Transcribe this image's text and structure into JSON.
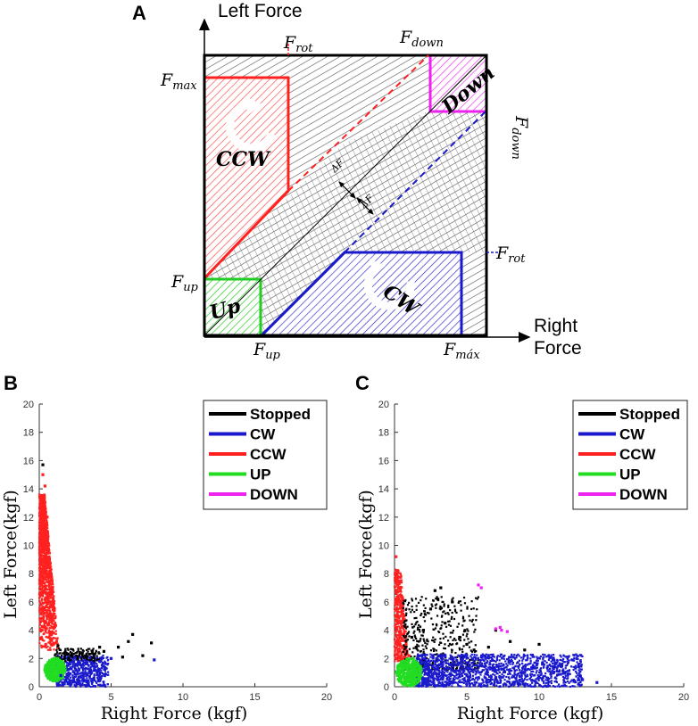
{
  "panel_a": {
    "letter": "A",
    "y_axis_title": "Left Force",
    "x_axis_title_line1": "Right",
    "x_axis_title_line2": "Force",
    "thresholds": {
      "f_rot_top": {
        "main": "F",
        "sub": "rot"
      },
      "f_down_top": {
        "main": "F",
        "sub": "down"
      },
      "f_max_left": {
        "main": "F",
        "sub": "max"
      },
      "f_up_left": {
        "main": "F",
        "sub": "up"
      },
      "f_up_bottom": {
        "main": "F",
        "sub": "up"
      },
      "f_max_bottom": {
        "main": "F",
        "sub": "máx"
      },
      "f_rot_right": {
        "main": "F",
        "sub": "rot"
      },
      "f_down_right": {
        "main": "F",
        "sub": "down"
      }
    },
    "regions": {
      "ccw": "CCW",
      "cw": "CW",
      "up": "Up",
      "down": "Down"
    },
    "delta_label": "ΔF",
    "colors": {
      "ccw": "#ff2020",
      "cw": "#1a1acc",
      "up": "#22cc22",
      "down": "#ee22ee",
      "stopped": "#000000"
    }
  },
  "chart_data": [
    {
      "panel": "B",
      "type": "scatter",
      "xlabel": "Right Force (kgf)",
      "ylabel": "Left Force(kgf)",
      "xlim": [
        0,
        20
      ],
      "ylim": [
        0,
        20
      ],
      "xticks": [
        "0",
        "5",
        "10",
        "15",
        "20"
      ],
      "yticks": [
        "0",
        "2",
        "4",
        "6",
        "8",
        "10",
        "12",
        "14",
        "16",
        "18",
        "20"
      ],
      "legend": [
        {
          "label": "Stopped",
          "color": "#000000"
        },
        {
          "label": "CW",
          "color": "#1a1acc"
        },
        {
          "label": "CCW",
          "color": "#ff2020"
        },
        {
          "label": "UP",
          "color": "#22dd22"
        },
        {
          "label": "DOWN",
          "color": "#ee22ee"
        }
      ],
      "series": [
        {
          "name": "CCW",
          "color": "#ff2020",
          "points": [
            [
              0.1,
              6.5
            ],
            [
              0.2,
              8.2
            ],
            [
              0.3,
              10.5
            ],
            [
              0.15,
              12.8
            ],
            [
              0.4,
              14.2
            ],
            [
              0.25,
              15.0
            ],
            [
              0.5,
              11.0
            ],
            [
              0.6,
              9.0
            ],
            [
              0.7,
              7.5
            ],
            [
              0.35,
              5.2
            ],
            [
              0.8,
              6.0
            ],
            [
              0.9,
              4.8
            ],
            [
              1.0,
              3.8
            ],
            [
              1.2,
              3.2
            ],
            [
              0.45,
              3.0
            ],
            [
              0.3,
              13.5
            ],
            [
              0.55,
              12.0
            ],
            [
              0.2,
              4.0
            ]
          ]
        },
        {
          "name": "Stopped",
          "color": "#000000",
          "points": [
            [
              0.25,
              15.7
            ],
            [
              1.3,
              2.9
            ],
            [
              2.0,
              2.3
            ],
            [
              3.0,
              2.4
            ],
            [
              3.8,
              2.3
            ],
            [
              4.5,
              2.5
            ],
            [
              5.5,
              2.8
            ],
            [
              6.2,
              3.2
            ],
            [
              6.5,
              3.7
            ],
            [
              7.8,
              3.1
            ],
            [
              5.8,
              2.1
            ],
            [
              4.2,
              2.8
            ],
            [
              7.2,
              2.2
            ]
          ]
        },
        {
          "name": "CW",
          "color": "#1a1acc",
          "points": [
            [
              1.5,
              0.8
            ],
            [
              2.0,
              1.2
            ],
            [
              2.5,
              0.9
            ],
            [
              3.0,
              1.5
            ],
            [
              3.5,
              1.0
            ],
            [
              4.2,
              1.8
            ],
            [
              5.0,
              2.0
            ],
            [
              8.0,
              1.9
            ],
            [
              2.8,
              0.4
            ],
            [
              3.8,
              0.6
            ],
            [
              4.6,
              1.3
            ]
          ]
        },
        {
          "name": "UP",
          "color": "#22dd22",
          "points": [
            [
              0.8,
              0.9
            ],
            [
              1.0,
              1.4
            ],
            [
              1.2,
              1.1
            ],
            [
              1.4,
              1.6
            ],
            [
              0.9,
              0.5
            ],
            [
              1.3,
              2.0
            ],
            [
              1.6,
              1.0
            ]
          ]
        },
        {
          "name": "DOWN",
          "color": "#ee22ee",
          "points": []
        }
      ]
    },
    {
      "panel": "C",
      "type": "scatter",
      "xlabel": "Right Force (kgf)",
      "ylabel": "Left Force(kgf)",
      "xlim": [
        0,
        20
      ],
      "ylim": [
        0,
        20
      ],
      "xticks": [
        "0",
        "5",
        "10",
        "15",
        "20"
      ],
      "yticks": [
        "0",
        "2",
        "4",
        "6",
        "8",
        "10",
        "12",
        "14",
        "16",
        "18",
        "20"
      ],
      "legend": [
        {
          "label": "Stopped",
          "color": "#000000"
        },
        {
          "label": "CW",
          "color": "#1a1acc"
        },
        {
          "label": "CCW",
          "color": "#ff2020"
        },
        {
          "label": "UP",
          "color": "#22dd22"
        },
        {
          "label": "DOWN",
          "color": "#ee22ee"
        }
      ],
      "series": [
        {
          "name": "CCW",
          "color": "#ff2020",
          "points": [
            [
              0.1,
              9.2
            ],
            [
              0.2,
              7.5
            ],
            [
              0.3,
              6.0
            ],
            [
              0.15,
              5.0
            ],
            [
              0.5,
              4.2
            ],
            [
              0.4,
              3.5
            ],
            [
              0.8,
              3.0
            ],
            [
              0.25,
              2.5
            ],
            [
              1.0,
              2.2
            ],
            [
              0.6,
              4.8
            ]
          ]
        },
        {
          "name": "Stopped",
          "color": "#000000",
          "points": [
            [
              1.5,
              2.8
            ],
            [
              2.0,
              4.0
            ],
            [
              2.5,
              5.5
            ],
            [
              3.0,
              6.2
            ],
            [
              3.2,
              7.0
            ],
            [
              3.5,
              4.5
            ],
            [
              4.0,
              6.0
            ],
            [
              4.5,
              3.5
            ],
            [
              5.0,
              3.0
            ],
            [
              5.5,
              2.6
            ],
            [
              6.5,
              2.8
            ],
            [
              7.0,
              4.0
            ],
            [
              8.0,
              3.2
            ],
            [
              9.0,
              2.6
            ],
            [
              10.0,
              3.0
            ],
            [
              1.2,
              3.5
            ],
            [
              2.8,
              6.8
            ]
          ]
        },
        {
          "name": "CW",
          "color": "#1a1acc",
          "points": [
            [
              2.0,
              0.5
            ],
            [
              3.0,
              1.2
            ],
            [
              4.0,
              2.0
            ],
            [
              5.0,
              0.8
            ],
            [
              6.0,
              1.5
            ],
            [
              7.0,
              0.6
            ],
            [
              8.0,
              1.8
            ],
            [
              9.0,
              1.0
            ],
            [
              10.0,
              0.7
            ],
            [
              11.0,
              1.3
            ],
            [
              12.0,
              0.9
            ],
            [
              13.0,
              0.5
            ],
            [
              14.0,
              0.3
            ],
            [
              3.5,
              2.2
            ],
            [
              6.5,
              2.1
            ]
          ]
        },
        {
          "name": "UP",
          "color": "#22dd22",
          "points": [
            [
              0.6,
              0.8
            ],
            [
              0.9,
              1.2
            ],
            [
              1.2,
              1.6
            ],
            [
              1.5,
              1.0
            ],
            [
              0.8,
              0.4
            ],
            [
              1.8,
              1.4
            ],
            [
              1.3,
              2.0
            ]
          ]
        },
        {
          "name": "DOWN",
          "color": "#ee22ee",
          "points": [
            [
              5.8,
              7.2
            ],
            [
              6.0,
              7.0
            ],
            [
              7.0,
              4.1
            ],
            [
              7.4,
              4.0
            ],
            [
              7.8,
              3.9
            ],
            [
              7.3,
              4.2
            ]
          ]
        }
      ]
    }
  ],
  "panel_b_letter": "B",
  "panel_c_letter": "C"
}
